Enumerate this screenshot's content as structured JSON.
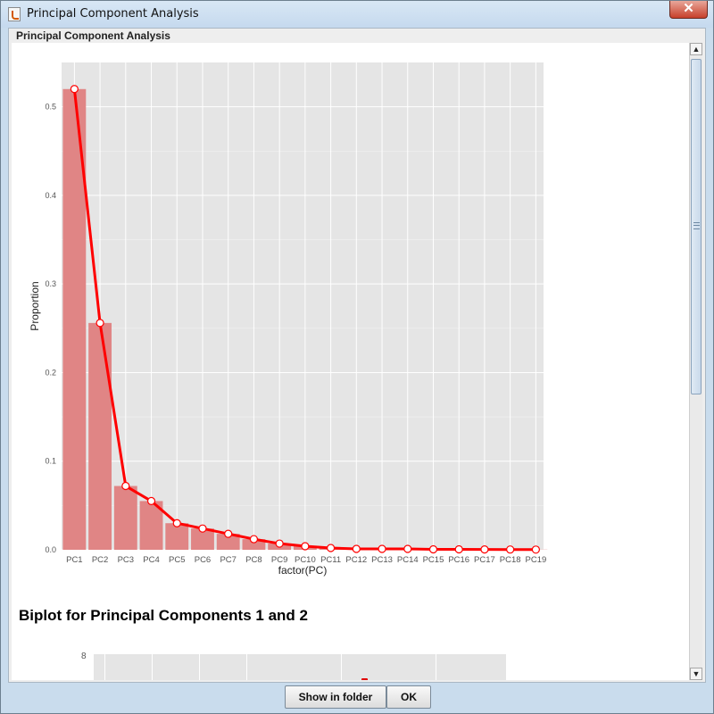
{
  "window": {
    "title": "Principal Component Analysis",
    "close_label": "✕"
  },
  "panel": {
    "section_title": "Principal Component Analysis"
  },
  "chart_data": {
    "type": "bar",
    "title": "",
    "xlabel": "factor(PC)",
    "ylabel": "Proportion",
    "ylim": [
      0,
      0.55
    ],
    "yticks": [
      0.0,
      0.1,
      0.2,
      0.3,
      0.4,
      0.5
    ],
    "ytick_labels": [
      "0.0",
      "0.1",
      "0.2",
      "0.3",
      "0.4",
      "0.5"
    ],
    "categories": [
      "PC1",
      "PC2",
      "PC3",
      "PC4",
      "PC5",
      "PC6",
      "PC7",
      "PC8",
      "PC9",
      "PC10",
      "PC11",
      "PC12",
      "PC13",
      "PC14",
      "PC15",
      "PC16",
      "PC17",
      "PC18",
      "PC19"
    ],
    "values": [
      0.52,
      0.256,
      0.072,
      0.055,
      0.03,
      0.024,
      0.018,
      0.012,
      0.007,
      0.004,
      0.002,
      0.001,
      0.001,
      0.001,
      0.0005,
      0.0005,
      0.0004,
      0.0003,
      0.0002
    ],
    "bar_color": "#e08585",
    "line_color": "#ff0000",
    "panel_color": "#e5e5e5",
    "grid": true,
    "overlay": "line with point markers"
  },
  "biplot": {
    "title": "Biplot for Principal Components 1 and 2",
    "visible_tick": "8"
  },
  "buttons": {
    "show_in_folder": "Show in folder",
    "ok": "OK"
  },
  "scroll": {
    "up": "▲",
    "down": "▼"
  }
}
